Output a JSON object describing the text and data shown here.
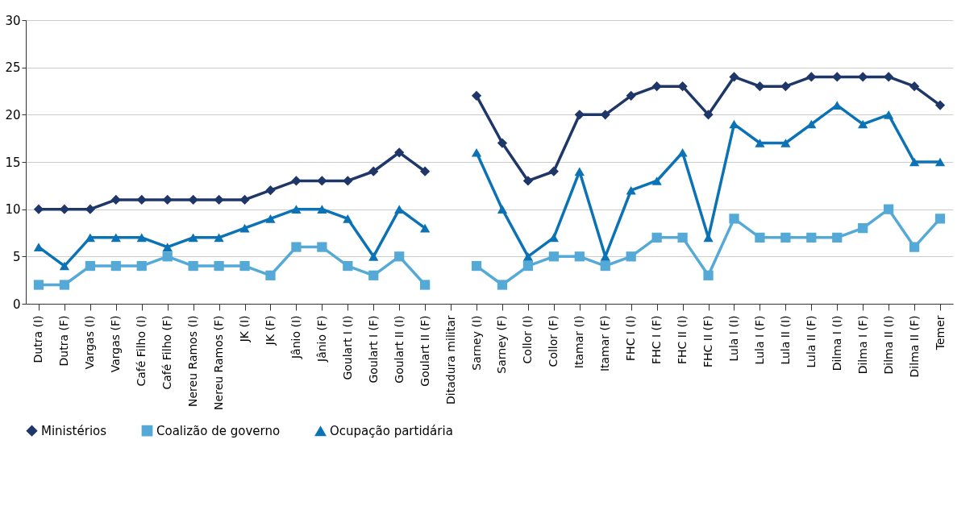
{
  "chart_data": {
    "type": "line",
    "categories": [
      "Dutra (I)",
      "Dutra (F)",
      "Vargas (I)",
      "Vargas (F)",
      "Café Filho (I)",
      "Café Filho (F)",
      "Nereu Ramos (I)",
      "Nereu Ramos (F)",
      "JK (I)",
      "JK (F)",
      "Jânio (I)",
      "Jânio (F)",
      "Goulart I (I)",
      "Goulart I (F)",
      "Goulart II (I)",
      "Goulart II (F)",
      "Ditadura militar",
      "Sarney (I)",
      "Sarney (F)",
      "Collor (I)",
      "Collor (F)",
      "Itamar (I)",
      "Itamar (F)",
      "FHC I (I)",
      "FHC I (F)",
      "FHC II (I)",
      "FHC II (F)",
      "Lula I (I)",
      "Lula I (F)",
      "Lula II (I)",
      "Lula II (F)",
      "Dilma I (I)",
      "Dilma I (F)",
      "Dilma II (I)",
      "Dilma II (F)",
      "Temer"
    ],
    "series": [
      {
        "name": "Ministérios",
        "color": "#1f3768",
        "marker": "diamond",
        "values": [
          10,
          10,
          10,
          11,
          11,
          11,
          11,
          11,
          11,
          12,
          13,
          13,
          13,
          14,
          16,
          14,
          null,
          22,
          17,
          13,
          14,
          20,
          20,
          22,
          23,
          23,
          20,
          24,
          23,
          23,
          24,
          24,
          24,
          24,
          23,
          21
        ]
      },
      {
        "name": "Coalizão de governo",
        "color": "#54a9d6",
        "marker": "square",
        "values": [
          2,
          2,
          4,
          4,
          4,
          5,
          4,
          4,
          4,
          3,
          6,
          6,
          4,
          3,
          5,
          2,
          null,
          4,
          2,
          4,
          5,
          5,
          4,
          5,
          7,
          7,
          3,
          9,
          7,
          7,
          7,
          7,
          8,
          10,
          6,
          9
        ]
      },
      {
        "name": "Ocupação partidária",
        "color": "#0b73b5",
        "marker": "triangle",
        "values": [
          6,
          4,
          7,
          7,
          7,
          6,
          7,
          7,
          8,
          9,
          10,
          10,
          9,
          5,
          10,
          8,
          null,
          16,
          10,
          5,
          7,
          14,
          5,
          12,
          13,
          16,
          7,
          19,
          17,
          17,
          19,
          21,
          19,
          20,
          15,
          15
        ]
      }
    ],
    "ylim": [
      0,
      30
    ],
    "yticks": [
      0,
      5,
      10,
      15,
      20,
      25,
      30
    ],
    "grid": "y",
    "legend": "bottom"
  }
}
